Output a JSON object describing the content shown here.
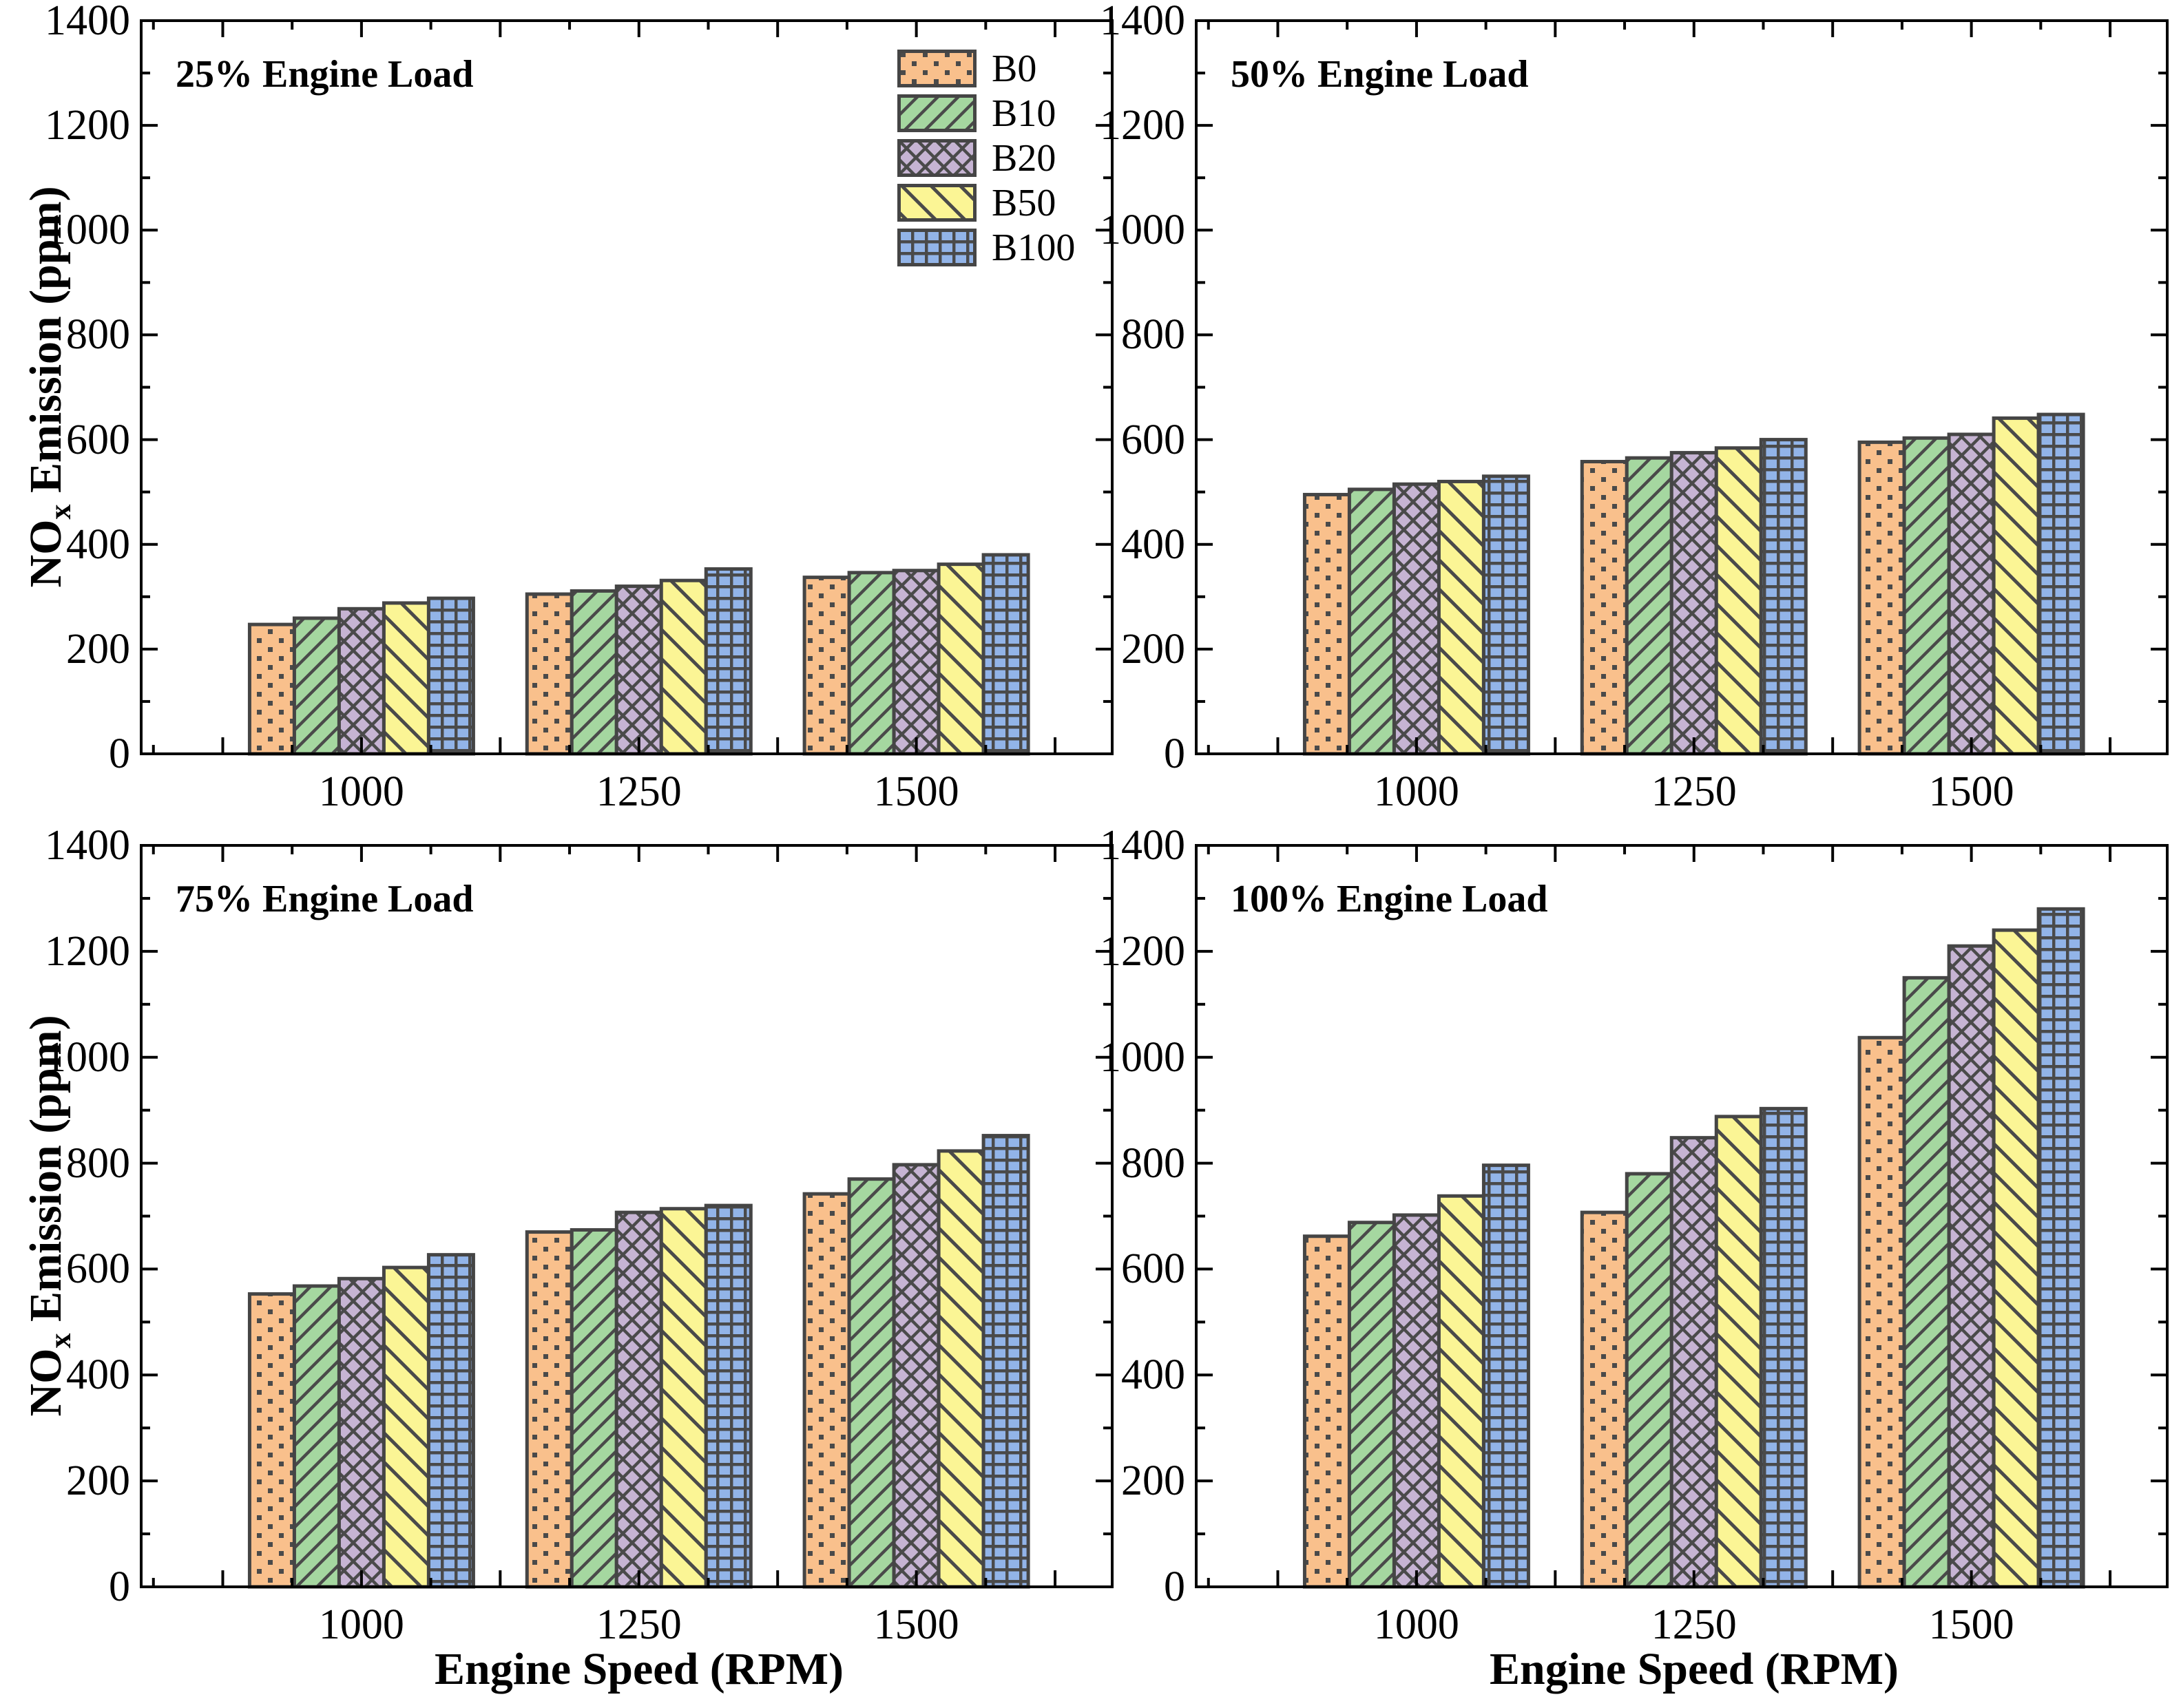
{
  "axes": {
    "ylabel_prefix": "NO",
    "ylabel_subscript": "x",
    "ylabel_suffix": " Emission (ppm)",
    "xlabel": "Engine Speed (RPM)",
    "x_tick_labels": [
      "1000",
      "1250",
      "1500"
    ],
    "y_tick_labels": [
      "0",
      "200",
      "400",
      "600",
      "800",
      "1000",
      "1200",
      "1400"
    ],
    "y_major_step": 200,
    "y_minor_step": 100
  },
  "legend": {
    "items": [
      {
        "label": "B0",
        "color": "#F9C08C",
        "pattern": "dots"
      },
      {
        "label": "B10",
        "color": "#A5D7A0",
        "pattern": "diag-forward"
      },
      {
        "label": "B20",
        "color": "#C6B4D3",
        "pattern": "crosshatch"
      },
      {
        "label": "B50",
        "color": "#FBF595",
        "pattern": "diag-back"
      },
      {
        "label": "B100",
        "color": "#92B4E8",
        "pattern": "grid"
      }
    ]
  },
  "colors": {
    "bar_edge": "#454545",
    "hatch": "#4A4A4A",
    "spine": "#000000",
    "background": "#FFFFFF"
  },
  "chart_data": {
    "type": "bar",
    "categories": [
      "1000",
      "1250",
      "1500"
    ],
    "ylim": [
      0,
      1400
    ],
    "grid": false,
    "legend_position": "upper-right-of-first-panel",
    "panels": [
      {
        "title": "25% Engine Load",
        "series": [
          {
            "name": "B0",
            "values": [
              247,
              305,
              337
            ]
          },
          {
            "name": "B10",
            "values": [
              259,
              311,
              346
            ]
          },
          {
            "name": "B20",
            "values": [
              277,
              320,
              350
            ]
          },
          {
            "name": "B50",
            "values": [
              288,
              331,
              362
            ]
          },
          {
            "name": "B100",
            "values": [
              297,
              353,
              380
            ]
          }
        ]
      },
      {
        "title": "50% Engine Load",
        "series": [
          {
            "name": "B0",
            "values": [
              495,
              558,
              595
            ]
          },
          {
            "name": "B10",
            "values": [
              505,
              565,
              603
            ]
          },
          {
            "name": "B20",
            "values": [
              515,
              575,
              610
            ]
          },
          {
            "name": "B50",
            "values": [
              520,
              584,
              641
            ]
          },
          {
            "name": "B100",
            "values": [
              530,
              600,
              648
            ]
          }
        ]
      },
      {
        "title": "75% Engine Load",
        "series": [
          {
            "name": "B0",
            "values": [
              553,
              670,
              742
            ]
          },
          {
            "name": "B10",
            "values": [
              568,
              674,
              770
            ]
          },
          {
            "name": "B20",
            "values": [
              582,
              707,
              797
            ]
          },
          {
            "name": "B50",
            "values": [
              603,
              714,
              823
            ]
          },
          {
            "name": "B100",
            "values": [
              627,
              720,
              852
            ]
          }
        ]
      },
      {
        "title": "100% Engine Load",
        "series": [
          {
            "name": "B0",
            "values": [
              662,
              707,
              1037
            ]
          },
          {
            "name": "B10",
            "values": [
              688,
              780,
              1150
            ]
          },
          {
            "name": "B20",
            "values": [
              702,
              848,
              1210
            ]
          },
          {
            "name": "B50",
            "values": [
              738,
              888,
              1240
            ]
          },
          {
            "name": "B100",
            "values": [
              796,
              903,
              1280
            ]
          }
        ]
      }
    ]
  }
}
